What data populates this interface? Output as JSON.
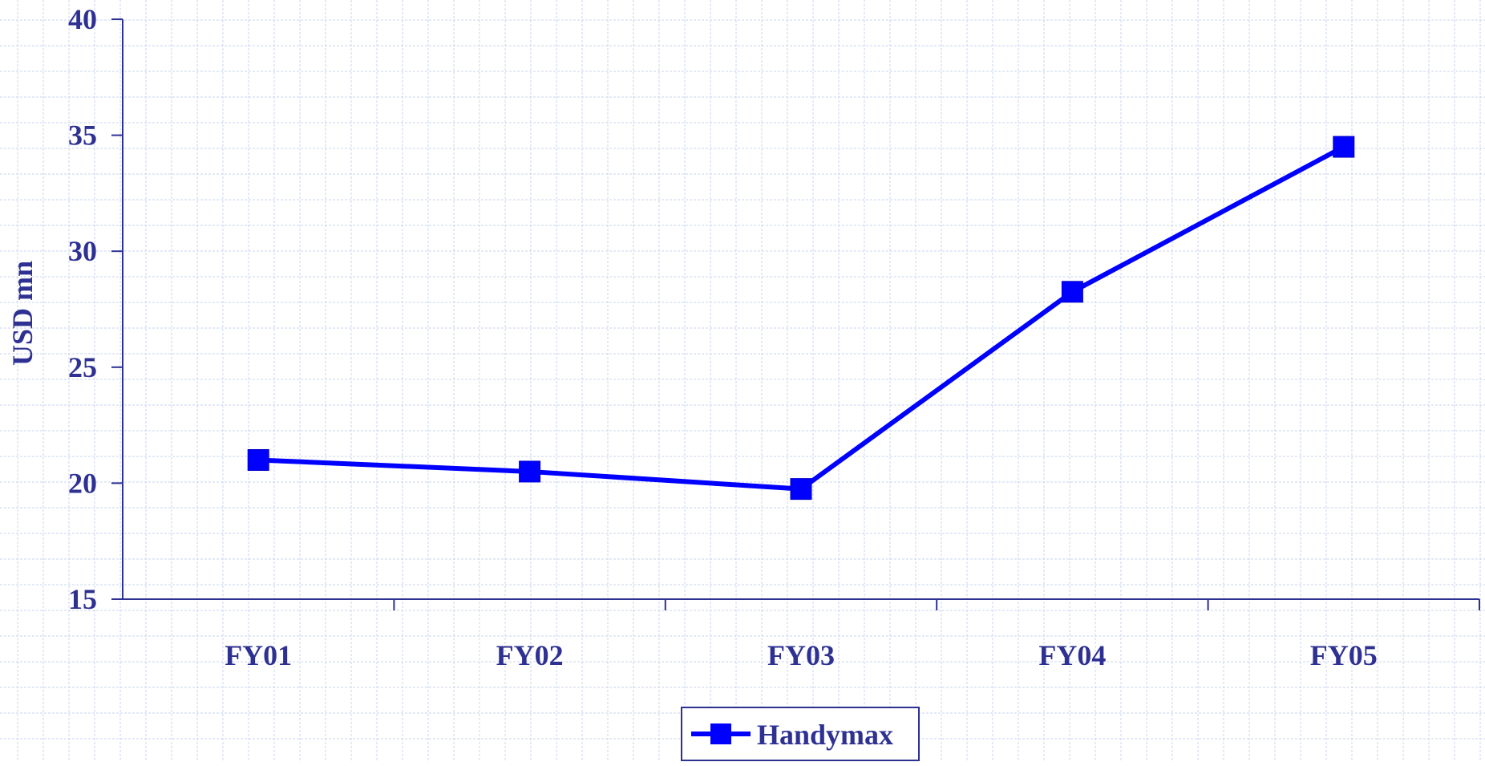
{
  "chart_data": {
    "type": "line",
    "categories": [
      "FY01",
      "FY02",
      "FY03",
      "FY04",
      "FY05"
    ],
    "series": [
      {
        "name": "Handymax",
        "values": [
          21.0,
          20.5,
          19.75,
          28.25,
          34.5
        ]
      }
    ],
    "title": "",
    "xlabel": "",
    "ylabel": "USD mn",
    "ylim": [
      15,
      40
    ],
    "yticks": [
      "15",
      "20",
      "25",
      "30",
      "35",
      "40"
    ],
    "grid": true,
    "legend": "bottom-center",
    "colors": {
      "line": "#0000ff",
      "axis_text": "#2e3192",
      "axis": "#2e3192",
      "grid": "#c8d4ee"
    }
  }
}
